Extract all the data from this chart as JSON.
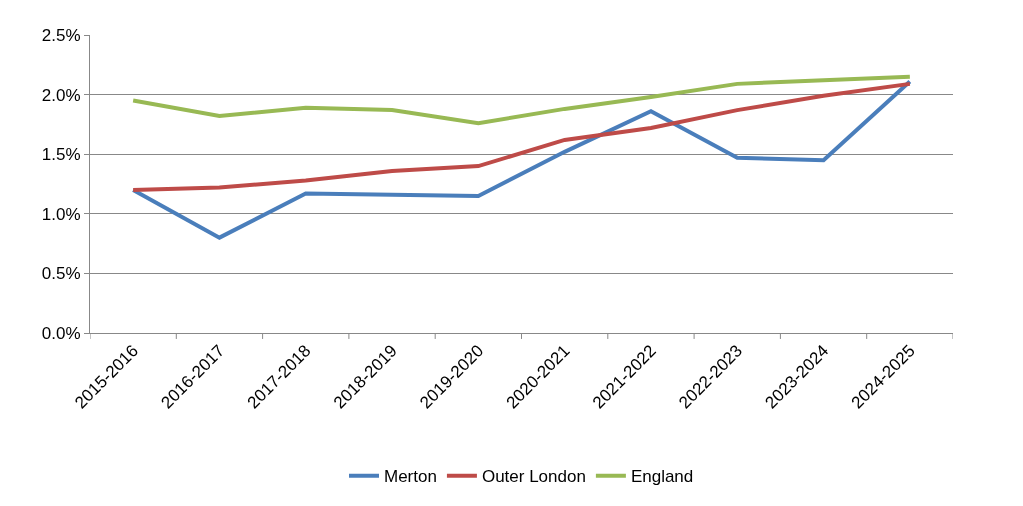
{
  "chart_data": {
    "type": "line",
    "categories": [
      "2015-2016",
      "2016-2017",
      "2017-2018",
      "2018-2019",
      "2019-2020",
      "2020-2021",
      "2021-2022",
      "2022-2023",
      "2023-2024",
      "2024-2025"
    ],
    "series": [
      {
        "name": "Merton",
        "color": "#4a7ebb",
        "values": [
          1.2,
          0.8,
          1.17,
          1.16,
          1.15,
          1.52,
          1.86,
          1.47,
          1.45,
          2.11
        ]
      },
      {
        "name": "Outer London",
        "color": "#be4b48",
        "values": [
          1.2,
          1.22,
          1.28,
          1.36,
          1.4,
          1.62,
          1.72,
          1.87,
          1.99,
          2.09
        ]
      },
      {
        "name": "England",
        "color": "#98b954",
        "values": [
          1.95,
          1.82,
          1.89,
          1.87,
          1.76,
          1.88,
          1.98,
          2.09,
          2.12,
          2.15
        ]
      }
    ],
    "ylim": [
      0,
      2.5
    ],
    "yticks": [
      {
        "value": 0,
        "label": "0.0%"
      },
      {
        "value": 0.5,
        "label": "0.5%"
      },
      {
        "value": 1,
        "label": "1.0%"
      },
      {
        "value": 1.5,
        "label": "1.5%"
      },
      {
        "value": 2,
        "label": "2.0%"
      },
      {
        "value": 2.5,
        "label": "2.5%"
      }
    ],
    "grid": "y",
    "legend": "bottom",
    "marker": "none",
    "line_style": "solid"
  }
}
